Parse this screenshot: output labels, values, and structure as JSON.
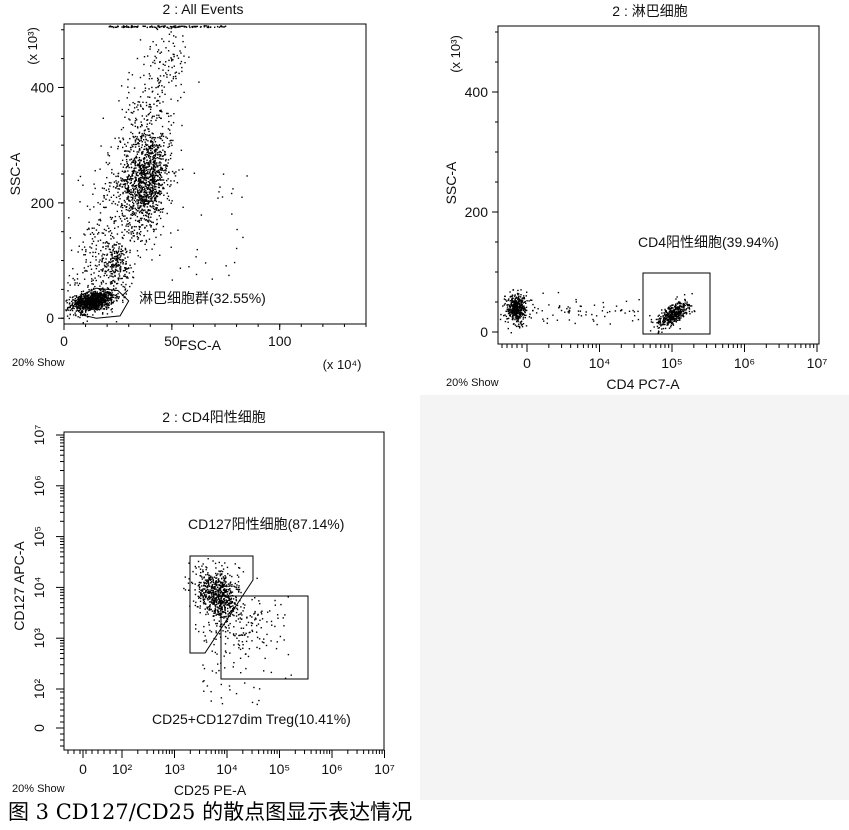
{
  "chart_data": [
    {
      "type": "scatter",
      "title": "2 : All Events",
      "xlabel": "FSC-A",
      "ylabel": "SSC-A",
      "x_multiplier": "(x 10⁴)",
      "y_multiplier": "(x 10³)",
      "xlim": [
        0,
        140
      ],
      "ylim": [
        -10,
        510
      ],
      "xticks": [
        0,
        50,
        100
      ],
      "yticks": [
        0,
        200,
        400
      ],
      "show_note": "20% Show",
      "populations": [
        {
          "name": "lymphocytes",
          "center": [
            13,
            30
          ],
          "spread": [
            5,
            12
          ],
          "count": 900
        },
        {
          "name": "monocytes",
          "center": [
            38,
            240
          ],
          "spread": [
            5,
            50
          ],
          "count": 1100
        },
        {
          "name": "small cluster",
          "center": [
            24,
            95
          ],
          "spread": [
            4,
            20
          ],
          "count": 230
        },
        {
          "name": "debris",
          "center": [
            40,
            220
          ],
          "spread": [
            20,
            130
          ],
          "count": 650
        }
      ],
      "gates": [
        {
          "label": "淋巴细胞群(32.55%)",
          "percent": 32.55,
          "polygon": [
            [
              6,
              14
            ],
            [
              9,
              5
            ],
            [
              15,
              0
            ],
            [
              26,
              4
            ],
            [
              30,
              30
            ],
            [
              25,
              48
            ],
            [
              15,
              52
            ],
            [
              8,
              40
            ]
          ]
        }
      ]
    },
    {
      "type": "scatter",
      "title": "2 : 淋巴细胞",
      "xlabel": "CD4 PC7-A",
      "ylabel": "SSC-A",
      "y_multiplier": "(x 10³)",
      "x_scale": "biexponential",
      "xticks": [
        "0",
        "10⁴",
        "10⁵",
        "10⁶",
        "10⁷"
      ],
      "yticks": [
        0,
        200,
        400
      ],
      "ylim": [
        -20,
        510
      ],
      "show_note": "20% Show",
      "populations": [
        {
          "name": "CD4 negative",
          "center_decades": [
            0,
            40
          ],
          "count": 420
        },
        {
          "name": "bridge",
          "count": 60
        },
        {
          "name": "CD4 positive",
          "center_decades": [
            5,
            30
          ],
          "count": 420
        }
      ],
      "gates": [
        {
          "label": "CD4阳性细胞(39.94%)",
          "percent": 39.94,
          "x_range_decades": [
            4.6,
            5.5
          ],
          "y_range": [
            -10,
            90
          ]
        }
      ]
    },
    {
      "type": "scatter",
      "title": "2 : CD4阳性细胞",
      "xlabel": "CD25 PE-A",
      "ylabel": "CD127 APC-A",
      "x_scale": "biexponential",
      "y_scale": "biexponential",
      "xticks": [
        "0",
        "10²",
        "10³",
        "10⁴",
        "10⁵",
        "10⁶",
        "10⁷"
      ],
      "yticks": [
        "0",
        "10²",
        "10³",
        "10⁴",
        "10⁵",
        "10⁶",
        "10⁷"
      ],
      "show_note": "20% Show",
      "populations": [
        {
          "name": "CD127 positive",
          "center_decades": [
            3.7,
            3.9
          ],
          "count": 650
        },
        {
          "name": "CD127dim CD25 positive",
          "count": 150
        }
      ],
      "gates": [
        {
          "label": "CD127阳性细胞(87.14%)",
          "percent": 87.14
        },
        {
          "label": "CD25+CD127dim Treg(10.41%)",
          "percent": 10.41
        }
      ]
    }
  ],
  "caption": "图 3 CD127/CD25 的散点图显示表达情况"
}
